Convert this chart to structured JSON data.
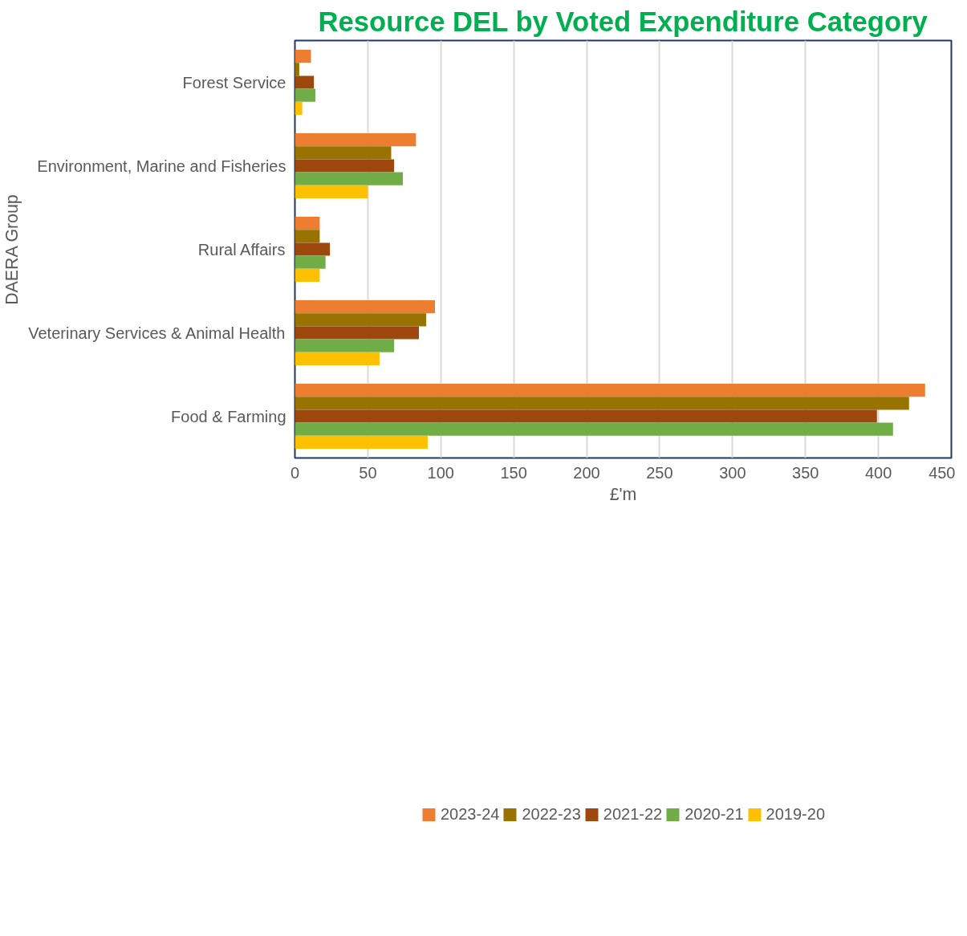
{
  "chart_data": {
    "type": "bar",
    "orientation": "horizontal",
    "title": "Resource DEL by Voted Expenditure Category",
    "xlabel": "£'m",
    "ylabel": "DAERA Group",
    "categories": [
      "Forest Service",
      "Environment, Marine and Fisheries",
      "Rural Affairs",
      "Veterinary Services & Animal Health",
      "Food & Farming"
    ],
    "series": [
      {
        "name": "2023-24",
        "color": "#ed7d31",
        "values": [
          11,
          83,
          17,
          96,
          432
        ]
      },
      {
        "name": "2022-23",
        "color": "#997300",
        "values": [
          3,
          66,
          17,
          90,
          421
        ]
      },
      {
        "name": "2021-22",
        "color": "#9e480e",
        "values": [
          13,
          68,
          24,
          85,
          399
        ]
      },
      {
        "name": "2020-21",
        "color": "#70ad47",
        "values": [
          14,
          74,
          21,
          68,
          410
        ]
      },
      {
        "name": "2019-20",
        "color": "#ffc000",
        "values": [
          5,
          50,
          17,
          58,
          91
        ]
      }
    ],
    "xlim": [
      0,
      450
    ],
    "xticks": [
      0,
      50,
      100,
      150,
      200,
      250,
      300,
      350,
      400,
      450
    ],
    "grid": "x",
    "legend": "bottom"
  }
}
